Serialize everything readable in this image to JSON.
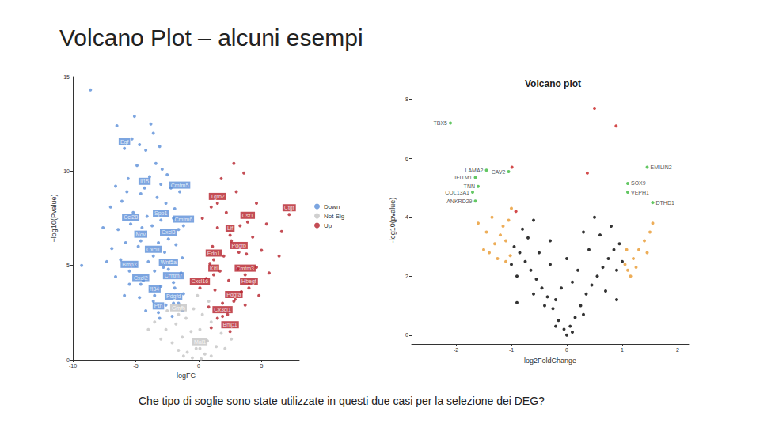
{
  "slide": {
    "title": "Volcano Plot – alcuni esempi",
    "caption": "Che tipo di soglie sono state utilizzate in questi due casi per la selezione dei DEG?"
  },
  "chart_data": [
    {
      "type": "scatter",
      "x_label": "logFC",
      "y_label": "−log10(Pvalue)",
      "xlim": [
        -10,
        8
      ],
      "xticks": [
        -10,
        -5,
        0,
        5
      ],
      "ylim": [
        0,
        15
      ],
      "yticks": [
        0,
        5,
        10,
        15
      ],
      "grid": false,
      "legend": "right",
      "marker": "circle",
      "series": [
        {
          "name": "Down",
          "color": "#5b8fd8",
          "x": [
            -8.6,
            -6.5,
            -5.1,
            -3.8,
            -3.6,
            -5.3,
            -4.7,
            -4.2,
            -3.1,
            -3.4,
            -2.9,
            -2.5,
            -4.9,
            -5.6,
            -6.6,
            -3.9,
            -2.2,
            -4.6,
            -7.0,
            -6.1,
            -3.3,
            -2.6,
            -1.9,
            -5.2,
            -7.6,
            -6.4,
            -4.1,
            -3.7,
            -2.0,
            -1.6,
            -5.8,
            -6.9,
            -4.8,
            -3.2,
            -2.7,
            -1.8,
            -1.3,
            -9.3,
            -7.3,
            -6.2,
            -5.0,
            -4.0,
            -3.5,
            -2.3,
            -1.4,
            -6.6,
            -5.5,
            -4.4,
            -3.0,
            -1.9,
            -1.2,
            -5.9,
            -4.7,
            -3.6,
            -2.6,
            -1.6,
            -4.2,
            -3.1,
            -2.1,
            -1.3,
            -3.8,
            -2.8,
            -4.5,
            -5.7,
            -3.0
          ],
          "values": [
            14.3,
            12.4,
            12.9,
            12.5,
            12.0,
            11.7,
            11.4,
            11.1,
            11.3,
            10.4,
            10.1,
            9.8,
            10.3,
            9.6,
            9.2,
            9.7,
            9.1,
            8.8,
            8.1,
            8.4,
            8.6,
            8.3,
            8.0,
            7.8,
            7.0,
            6.9,
            7.6,
            7.1,
            7.5,
            6.9,
            6.2,
            5.9,
            6.0,
            6.2,
            5.7,
            6.1,
            5.4,
            5.0,
            5.2,
            5.3,
            5.0,
            5.2,
            4.7,
            4.4,
            4.6,
            4.4,
            4.0,
            4.2,
            3.9,
            3.8,
            3.5,
            3.4,
            3.3,
            3.1,
            2.9,
            3.0,
            2.6,
            2.2,
            2.3,
            2.6,
            3.7,
            4.9,
            7.0,
            8.9,
            9.3
          ]
        },
        {
          "name": "Not Sig",
          "color": "#c4c4c4",
          "x": [
            -3.5,
            -2.6,
            -1.8,
            -1.0,
            -0.4,
            0.3,
            1.0,
            1.8,
            2.6,
            -3.0,
            -2.1,
            -1.3,
            -0.6,
            0.1,
            0.7,
            1.4,
            -1.6,
            -0.9,
            -0.2,
            0.5,
            1.0,
            -0.5,
            0.2,
            -1.2,
            -2.5,
            -1.5,
            0.8,
            -0.1,
            -4.0,
            2.1
          ],
          "values": [
            2.0,
            1.6,
            1.9,
            2.2,
            2.7,
            2.4,
            2.0,
            1.4,
            1.1,
            1.1,
            0.9,
            1.2,
            1.5,
            1.6,
            1.0,
            0.7,
            0.5,
            0.4,
            0.6,
            0.3,
            0.2,
            0.1,
            0.05,
            0.2,
            2.6,
            2.9,
            3.1,
            3.4,
            1.6,
            0.6
          ]
        },
        {
          "name": "Up",
          "color": "#b5202a",
          "x": [
            0.3,
            1.8,
            2.8,
            3.6,
            3.0,
            4.6,
            1.0,
            2.2,
            5.4,
            6.6,
            3.3,
            1.5,
            4.3,
            2.6,
            1.1,
            5.0,
            3.8,
            2.0,
            0.9,
            4.6,
            3.1,
            1.7,
            0.6,
            2.4,
            4.0,
            3.4,
            1.3,
            2.9,
            1.9,
            0.8,
            2.3,
            1.5,
            3.7,
            5.6,
            6.4,
            2.7,
            1.0,
            4.8
          ],
          "values": [
            7.5,
            9.6,
            10.4,
            9.9,
            8.9,
            8.3,
            8.1,
            7.8,
            7.2,
            6.8,
            7.1,
            7.0,
            6.5,
            6.3,
            6.0,
            5.8,
            5.6,
            5.5,
            5.1,
            4.9,
            4.8,
            4.7,
            4.3,
            4.2,
            4.1,
            3.6,
            3.7,
            3.2,
            3.0,
            2.8,
            2.4,
            2.2,
            2.9,
            4.6,
            5.5,
            1.9,
            1.7,
            3.4
          ]
        }
      ],
      "annotations": [
        {
          "text": "Egf",
          "x": -5.9,
          "y": 11.2,
          "series": "Down"
        },
        {
          "text": "Il15",
          "x": -4.3,
          "y": 9.1,
          "series": "Down"
        },
        {
          "text": "Cmtm5",
          "x": -1.5,
          "y": 8.9,
          "series": "Down"
        },
        {
          "text": "Ccl28",
          "x": -5.4,
          "y": 7.2,
          "series": "Down"
        },
        {
          "text": "Spp1",
          "x": -3.0,
          "y": 7.4,
          "series": "Down"
        },
        {
          "text": "Cmtm6",
          "x": -1.2,
          "y": 7.1,
          "series": "Down"
        },
        {
          "text": "Nov",
          "x": -4.6,
          "y": 6.3,
          "series": "Down"
        },
        {
          "text": "Cxcl3",
          "x": -2.4,
          "y": 6.4,
          "series": "Down"
        },
        {
          "text": "Cxcl1",
          "x": -3.6,
          "y": 5.5,
          "series": "Down"
        },
        {
          "text": "Bmp3",
          "x": -5.5,
          "y": 4.7,
          "series": "Down"
        },
        {
          "text": "Wnt5a",
          "x": -2.4,
          "y": 4.8,
          "series": "Down"
        },
        {
          "text": "Cxcl2",
          "x": -4.6,
          "y": 4.0,
          "series": "Down"
        },
        {
          "text": "Cmtm7",
          "x": -2.0,
          "y": 4.1,
          "series": "Down"
        },
        {
          "text": "Il34",
          "x": -3.5,
          "y": 3.4,
          "series": "Down"
        },
        {
          "text": "Pdgfd",
          "x": -2.0,
          "y": 3.0,
          "series": "Down"
        },
        {
          "text": "Ptn",
          "x": -3.2,
          "y": 2.5,
          "series": "Down"
        },
        {
          "text": "Gmfb",
          "x": -1.6,
          "y": 2.4,
          "series": "Not Sig"
        },
        {
          "text": "Mal1",
          "x": 0.1,
          "y": 0.6,
          "series": "Not Sig"
        },
        {
          "text": "Tgfb2",
          "x": 1.5,
          "y": 8.3,
          "series": "Up"
        },
        {
          "text": "Ctgf",
          "x": 7.2,
          "y": 7.7,
          "series": "Up"
        },
        {
          "text": "Csf1",
          "x": 3.9,
          "y": 7.3,
          "series": "Up"
        },
        {
          "text": "Lif",
          "x": 2.5,
          "y": 6.6,
          "series": "Up"
        },
        {
          "text": "Pdgfb",
          "x": 3.2,
          "y": 5.7,
          "series": "Up"
        },
        {
          "text": "Edn1",
          "x": 1.2,
          "y": 5.3,
          "series": "Up"
        },
        {
          "text": "Kitl",
          "x": 1.2,
          "y": 4.5,
          "series": "Up"
        },
        {
          "text": "Cmtm3",
          "x": 3.7,
          "y": 4.5,
          "series": "Up"
        },
        {
          "text": "Cxcl16",
          "x": 0.1,
          "y": 3.8,
          "series": "Up"
        },
        {
          "text": "Hbegf",
          "x": 4.0,
          "y": 3.8,
          "series": "Up"
        },
        {
          "text": "Pdgfa",
          "x": 2.8,
          "y": 3.1,
          "series": "Up"
        },
        {
          "text": "Cx3cl1",
          "x": 1.9,
          "y": 2.3,
          "series": "Up"
        },
        {
          "text": "Bmp1",
          "x": 2.5,
          "y": 1.5,
          "series": "Up"
        }
      ]
    },
    {
      "type": "scatter",
      "title": "Volcano plot",
      "x_label": "log2FoldChange",
      "y_label": "-log10(pvalue)",
      "xlim": [
        -2.8,
        2.2
      ],
      "xticks": [
        -2,
        -1,
        0,
        1,
        2
      ],
      "ylim": [
        -0.3,
        8.1
      ],
      "yticks": [
        0,
        2,
        4,
        6,
        8
      ],
      "grid": false,
      "marker": "circle",
      "series": [
        {
          "color": "#000000",
          "x": [
            0,
            -0.05,
            0.06,
            -0.15,
            0.15,
            -0.25,
            0.25,
            -0.35,
            0.35,
            -0.45,
            0.45,
            -0.55,
            0.55,
            -0.65,
            0.65,
            -0.75,
            0.75,
            -0.85,
            0.85,
            -0.95,
            0.95,
            -0.5,
            0.4,
            -0.7,
            0.6,
            -0.3,
            0.2,
            -0.1,
            0.1,
            -0.8,
            0.8,
            -0.6,
            0.5,
            -0.9,
            0.9,
            -0.4,
            0.3,
            -0.2,
            0.7,
            -0.6,
            -1.0,
            1.0,
            -0.3,
            0.3,
            0.0,
            -0.2,
            0.1,
            0.9,
            -0.9
          ],
          "values": [
            0,
            0.2,
            0.3,
            0.5,
            0.6,
            0.9,
            1.0,
            1.3,
            1.4,
            1.6,
            1.7,
            1.9,
            2.0,
            2.2,
            2.3,
            2.5,
            2.6,
            2.8,
            2.9,
            3.0,
            3.1,
            2.8,
            2.9,
            3.3,
            3.4,
            2.4,
            2.2,
            1.6,
            1.8,
            3.6,
            3.7,
            3.9,
            4.0,
            2.0,
            2.2,
            1.0,
            0.7,
            1.2,
            1.5,
            1.4,
            2.4,
            2.5,
            3.2,
            3.5,
            2.6,
            0.3,
            0.1,
            1.2,
            1.1
          ]
        },
        {
          "color": "#e8992e",
          "x": [
            -1.0,
            -1.05,
            -1.15,
            -1.2,
            -1.3,
            -1.1,
            -1.4,
            -1.25,
            -1.5,
            -1.35,
            -1.45,
            -1.6,
            -1.02,
            -1.1,
            1.05,
            1.1,
            1.2,
            1.3,
            1.4,
            1.5,
            1.55,
            1.15,
            1.25,
            1.45,
            1.08
          ],
          "values": [
            4.3,
            3.9,
            3.7,
            3.4,
            3.1,
            3.2,
            2.8,
            2.6,
            2.9,
            4.0,
            3.5,
            3.8,
            2.7,
            2.5,
            2.4,
            2.2,
            2.6,
            2.9,
            3.2,
            3.5,
            3.8,
            2.0,
            2.3,
            2.8,
            2.9
          ]
        },
        {
          "color": "#c81e1e",
          "x": [
            0.5,
            0.89,
            -0.99,
            0.37,
            -0.92
          ],
          "values": [
            7.7,
            7.1,
            5.7,
            5.5,
            4.2
          ]
        }
      ],
      "annotations": [
        {
          "text": "TBX5",
          "x": -2.1,
          "y": 7.2,
          "color": "#3cb93c"
        },
        {
          "text": "LAMA2",
          "x": -1.45,
          "y": 5.6,
          "color": "#3cb93c"
        },
        {
          "text": "IFITM1",
          "x": -1.65,
          "y": 5.35,
          "color": "#3cb93c"
        },
        {
          "text": "CAV2",
          "x": -1.05,
          "y": 5.55,
          "color": "#3cb93c"
        },
        {
          "text": "TNN",
          "x": -1.6,
          "y": 5.05,
          "color": "#3cb93c"
        },
        {
          "text": "COL13A1",
          "x": -1.7,
          "y": 4.85,
          "color": "#3cb93c"
        },
        {
          "text": "ANKRD29",
          "x": -1.65,
          "y": 4.55,
          "color": "#3cb93c"
        },
        {
          "text": "EMILIN2",
          "x": 1.45,
          "y": 5.7,
          "color": "#3cb93c"
        },
        {
          "text": "SOX9",
          "x": 1.1,
          "y": 5.15,
          "color": "#3cb93c"
        },
        {
          "text": "VEPH1",
          "x": 1.1,
          "y": 4.85,
          "color": "#3cb93c"
        },
        {
          "text": "DTHD1",
          "x": 1.55,
          "y": 4.5,
          "color": "#3cb93c"
        }
      ]
    }
  ]
}
